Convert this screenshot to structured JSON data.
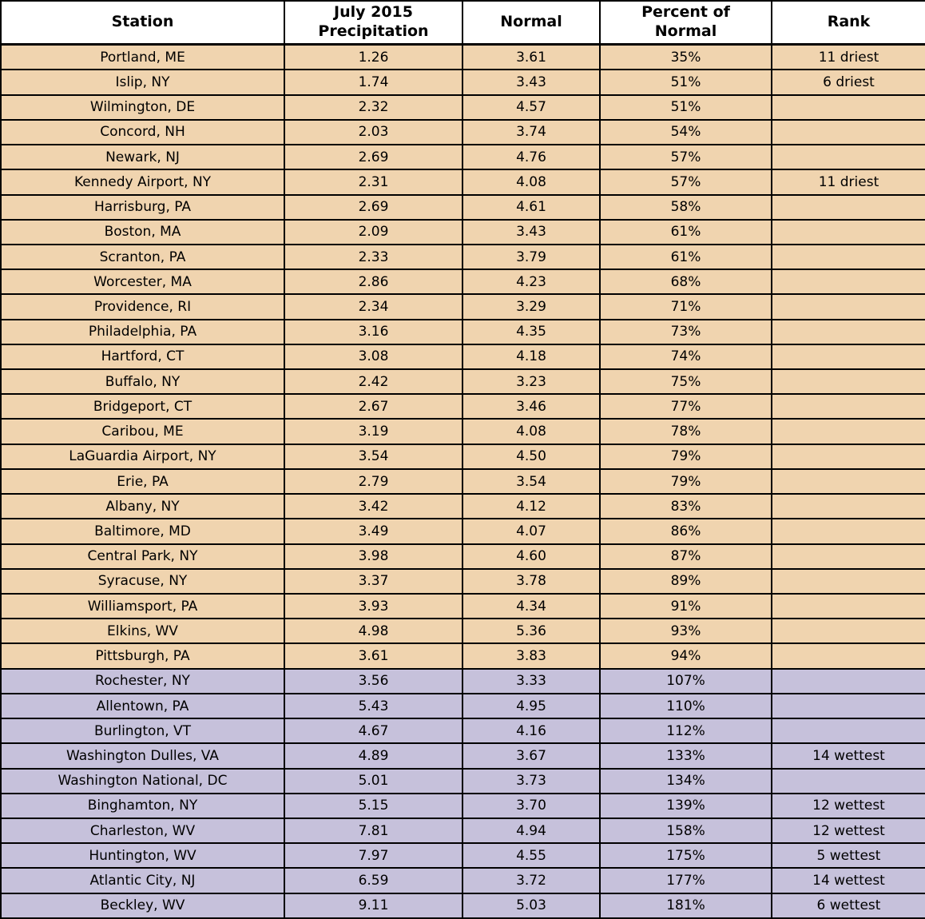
{
  "colors": {
    "dry_row_bg": "#f0d4af",
    "wet_row_bg": "#c6c1db",
    "header_bg": "#ffffff",
    "border": "#000000",
    "text": "#000000"
  },
  "chart_data": {
    "type": "table",
    "columns": [
      {
        "id": "station",
        "label": "Station"
      },
      {
        "id": "precipitation",
        "label": "July 2015\nPrecipitation"
      },
      {
        "id": "normal",
        "label": "Normal"
      },
      {
        "id": "percent_of_normal",
        "label": "Percent of\nNormal"
      },
      {
        "id": "rank",
        "label": "Rank"
      }
    ],
    "rows": [
      {
        "station": "Portland, ME",
        "precipitation": "1.26",
        "normal": "3.61",
        "percent_of_normal": "35%",
        "rank": "11 driest",
        "category": "below-normal"
      },
      {
        "station": "Islip, NY",
        "precipitation": "1.74",
        "normal": "3.43",
        "percent_of_normal": "51%",
        "rank": "6 driest",
        "category": "below-normal"
      },
      {
        "station": "Wilmington, DE",
        "precipitation": "2.32",
        "normal": "4.57",
        "percent_of_normal": "51%",
        "rank": "",
        "category": "below-normal"
      },
      {
        "station": "Concord, NH",
        "precipitation": "2.03",
        "normal": "3.74",
        "percent_of_normal": "54%",
        "rank": "",
        "category": "below-normal"
      },
      {
        "station": "Newark, NJ",
        "precipitation": "2.69",
        "normal": "4.76",
        "percent_of_normal": "57%",
        "rank": "",
        "category": "below-normal"
      },
      {
        "station": "Kennedy Airport, NY",
        "precipitation": "2.31",
        "normal": "4.08",
        "percent_of_normal": "57%",
        "rank": "11 driest",
        "category": "below-normal"
      },
      {
        "station": "Harrisburg, PA",
        "precipitation": "2.69",
        "normal": "4.61",
        "percent_of_normal": "58%",
        "rank": "",
        "category": "below-normal"
      },
      {
        "station": "Boston, MA",
        "precipitation": "2.09",
        "normal": "3.43",
        "percent_of_normal": "61%",
        "rank": "",
        "category": "below-normal"
      },
      {
        "station": "Scranton, PA",
        "precipitation": "2.33",
        "normal": "3.79",
        "percent_of_normal": "61%",
        "rank": "",
        "category": "below-normal"
      },
      {
        "station": "Worcester, MA",
        "precipitation": "2.86",
        "normal": "4.23",
        "percent_of_normal": "68%",
        "rank": "",
        "category": "below-normal"
      },
      {
        "station": "Providence, RI",
        "precipitation": "2.34",
        "normal": "3.29",
        "percent_of_normal": "71%",
        "rank": "",
        "category": "below-normal"
      },
      {
        "station": "Philadelphia, PA",
        "precipitation": "3.16",
        "normal": "4.35",
        "percent_of_normal": "73%",
        "rank": "",
        "category": "below-normal"
      },
      {
        "station": "Hartford, CT",
        "precipitation": "3.08",
        "normal": "4.18",
        "percent_of_normal": "74%",
        "rank": "",
        "category": "below-normal"
      },
      {
        "station": "Buffalo, NY",
        "precipitation": "2.42",
        "normal": "3.23",
        "percent_of_normal": "75%",
        "rank": "",
        "category": "below-normal"
      },
      {
        "station": "Bridgeport, CT",
        "precipitation": "2.67",
        "normal": "3.46",
        "percent_of_normal": "77%",
        "rank": "",
        "category": "below-normal"
      },
      {
        "station": "Caribou, ME",
        "precipitation": "3.19",
        "normal": "4.08",
        "percent_of_normal": "78%",
        "rank": "",
        "category": "below-normal"
      },
      {
        "station": "LaGuardia Airport, NY",
        "precipitation": "3.54",
        "normal": "4.50",
        "percent_of_normal": "79%",
        "rank": "",
        "category": "below-normal"
      },
      {
        "station": "Erie, PA",
        "precipitation": "2.79",
        "normal": "3.54",
        "percent_of_normal": "79%",
        "rank": "",
        "category": "below-normal"
      },
      {
        "station": "Albany, NY",
        "precipitation": "3.42",
        "normal": "4.12",
        "percent_of_normal": "83%",
        "rank": "",
        "category": "below-normal"
      },
      {
        "station": "Baltimore, MD",
        "precipitation": "3.49",
        "normal": "4.07",
        "percent_of_normal": "86%",
        "rank": "",
        "category": "below-normal"
      },
      {
        "station": "Central Park, NY",
        "precipitation": "3.98",
        "normal": "4.60",
        "percent_of_normal": "87%",
        "rank": "",
        "category": "below-normal"
      },
      {
        "station": "Syracuse, NY",
        "precipitation": "3.37",
        "normal": "3.78",
        "percent_of_normal": "89%",
        "rank": "",
        "category": "below-normal"
      },
      {
        "station": "Williamsport, PA",
        "precipitation": "3.93",
        "normal": "4.34",
        "percent_of_normal": "91%",
        "rank": "",
        "category": "below-normal"
      },
      {
        "station": "Elkins, WV",
        "precipitation": "4.98",
        "normal": "5.36",
        "percent_of_normal": "93%",
        "rank": "",
        "category": "below-normal"
      },
      {
        "station": "Pittsburgh, PA",
        "precipitation": "3.61",
        "normal": "3.83",
        "percent_of_normal": "94%",
        "rank": "",
        "category": "below-normal"
      },
      {
        "station": "Rochester, NY",
        "precipitation": "3.56",
        "normal": "3.33",
        "percent_of_normal": "107%",
        "rank": "",
        "category": "above-normal"
      },
      {
        "station": "Allentown, PA",
        "precipitation": "5.43",
        "normal": "4.95",
        "percent_of_normal": "110%",
        "rank": "",
        "category": "above-normal"
      },
      {
        "station": "Burlington, VT",
        "precipitation": "4.67",
        "normal": "4.16",
        "percent_of_normal": "112%",
        "rank": "",
        "category": "above-normal"
      },
      {
        "station": "Washington Dulles, VA",
        "precipitation": "4.89",
        "normal": "3.67",
        "percent_of_normal": "133%",
        "rank": "14 wettest",
        "category": "above-normal"
      },
      {
        "station": "Washington National, DC",
        "precipitation": "5.01",
        "normal": "3.73",
        "percent_of_normal": "134%",
        "rank": "",
        "category": "above-normal"
      },
      {
        "station": "Binghamton, NY",
        "precipitation": "5.15",
        "normal": "3.70",
        "percent_of_normal": "139%",
        "rank": "12 wettest",
        "category": "above-normal"
      },
      {
        "station": "Charleston, WV",
        "precipitation": "7.81",
        "normal": "4.94",
        "percent_of_normal": "158%",
        "rank": "12 wettest",
        "category": "above-normal"
      },
      {
        "station": "Huntington, WV",
        "precipitation": "7.97",
        "normal": "4.55",
        "percent_of_normal": "175%",
        "rank": "5 wettest",
        "category": "above-normal"
      },
      {
        "station": "Atlantic City, NJ",
        "precipitation": "6.59",
        "normal": "3.72",
        "percent_of_normal": "177%",
        "rank": "14 wettest",
        "category": "above-normal"
      },
      {
        "station": "Beckley, WV",
        "precipitation": "9.11",
        "normal": "5.03",
        "percent_of_normal": "181%",
        "rank": "6 wettest",
        "category": "above-normal"
      }
    ]
  }
}
